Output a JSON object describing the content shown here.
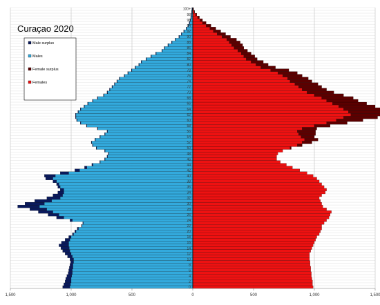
{
  "chart_data": {
    "type": "bar",
    "orientation": "horizontal-pyramid",
    "title": "Curaçao 2020",
    "x_ticks": [
      "1,500",
      "1,000",
      "500",
      "0",
      "500",
      "1,000",
      "1,500"
    ],
    "x_tick_values": [
      -1500,
      -1000,
      -500,
      0,
      500,
      1000,
      1500
    ],
    "xlim": [
      -1500,
      1500
    ],
    "y_ages": [
      0,
      100
    ],
    "age_tick_labels": [
      "0",
      "2",
      "4",
      "6",
      "8",
      "10",
      "12",
      "14",
      "16",
      "18",
      "20",
      "22",
      "24",
      "26",
      "28",
      "30",
      "32",
      "34",
      "36",
      "38",
      "40",
      "42",
      "44",
      "46",
      "48",
      "50",
      "52",
      "54",
      "56",
      "58",
      "60",
      "62",
      "64",
      "66",
      "68",
      "70",
      "72",
      "74",
      "76",
      "78",
      "80",
      "82",
      "84",
      "86",
      "88",
      "90",
      "92",
      "94",
      "96",
      "98",
      "100+"
    ],
    "legend": {
      "placement": "top-left",
      "entries": [
        {
          "label": "Male surplus",
          "color": "#0a1a5c"
        },
        {
          "label": "Males",
          "color": "#33aadd"
        },
        {
          "label": "Female surplus",
          "color": "#5c0000"
        },
        {
          "label": "Females",
          "color": "#ee1111"
        }
      ]
    },
    "grid": true,
    "series": [
      {
        "name": "Males",
        "values": [
          1010,
          1005,
          1000,
          1000,
          995,
          990,
          990,
          985,
          985,
          980,
          980,
          990,
          1000,
          1010,
          1015,
          1020,
          1020,
          1010,
          1000,
          980,
          960,
          940,
          910,
          900,
          990,
          1060,
          1100,
          1150,
          1200,
          1260,
          1220,
          1160,
          1090,
          1070,
          1060,
          1060,
          1090,
          1100,
          1120,
          1150,
          1130,
          1020,
          930,
          870,
          820,
          760,
          720,
          700,
          690,
          720,
          790,
          820,
          830,
          800,
          760,
          720,
          700,
          780,
          870,
          920,
          950,
          960,
          960,
          940,
          920,
          890,
          860,
          820,
          780,
          730,
          700,
          680,
          660,
          640,
          620,
          600,
          560,
          530,
          500,
          470,
          440,
          420,
          380,
          340,
          300,
          250,
          230,
          200,
          170,
          140,
          110,
          90,
          70,
          50,
          35,
          25,
          18,
          12,
          8,
          5,
          3
        ]
      },
      {
        "name": "Females",
        "values": [
          990,
          985,
          985,
          980,
          975,
          975,
          970,
          970,
          965,
          965,
          960,
          960,
          960,
          970,
          980,
          990,
          1000,
          1010,
          1020,
          1040,
          1050,
          1060,
          1060,
          1080,
          1100,
          1120,
          1130,
          1140,
          1100,
          1070,
          1060,
          1050,
          1040,
          1060,
          1090,
          1100,
          1080,
          1060,
          1040,
          1020,
          990,
          940,
          880,
          820,
          770,
          720,
          690,
          690,
          700,
          740,
          800,
          860,
          900,
          920,
          890,
          870,
          860,
          900,
          1000,
          1100,
          1180,
          1240,
          1300,
          1280,
          1240,
          1200,
          1150,
          1100,
          1060,
          1000,
          940,
          900,
          870,
          840,
          800,
          780,
          740,
          700,
          640,
          560,
          520,
          480,
          440,
          420,
          400,
          370,
          340,
          320,
          300,
          280,
          240,
          200,
          170,
          140,
          110,
          80,
          60,
          40,
          25,
          12,
          5
        ]
      },
      {
        "name": "Male surplus",
        "values": [
          60,
          55,
          50,
          45,
          40,
          35,
          30,
          30,
          25,
          25,
          30,
          40,
          50,
          60,
          70,
          80,
          60,
          40,
          20,
          10,
          10,
          10,
          5,
          5,
          20,
          60,
          90,
          120,
          140,
          180,
          160,
          140,
          110,
          80,
          50,
          30,
          20,
          20,
          30,
          60,
          90,
          70,
          40,
          20,
          10,
          5,
          5,
          5,
          5,
          5,
          5,
          5,
          5,
          5,
          5,
          5,
          5,
          5,
          5,
          5,
          5,
          5,
          5,
          5,
          5,
          5,
          5,
          5,
          5,
          5,
          5,
          5,
          5,
          5,
          5,
          5,
          5,
          5,
          5,
          5,
          5,
          5,
          5,
          5,
          5,
          5,
          5,
          5,
          5,
          5,
          5,
          5,
          5,
          5,
          5,
          5,
          5,
          5,
          5,
          5,
          5
        ]
      },
      {
        "name": "Female surplus",
        "values": [
          0,
          0,
          0,
          0,
          0,
          0,
          0,
          0,
          0,
          0,
          0,
          0,
          0,
          0,
          0,
          0,
          0,
          0,
          0,
          0,
          0,
          0,
          0,
          0,
          0,
          0,
          0,
          0,
          0,
          0,
          0,
          0,
          0,
          0,
          0,
          0,
          0,
          0,
          0,
          0,
          0,
          0,
          0,
          0,
          0,
          0,
          0,
          0,
          0,
          0,
          10,
          40,
          80,
          110,
          110,
          140,
          150,
          120,
          130,
          170,
          220,
          280,
          330,
          320,
          310,
          300,
          280,
          260,
          260,
          240,
          220,
          200,
          190,
          190,
          180,
          170,
          160,
          160,
          150,
          120,
          100,
          100,
          90,
          90,
          80,
          80,
          80,
          90,
          90,
          80,
          70,
          70,
          60,
          50,
          40,
          30,
          20,
          15,
          8,
          4,
          2
        ]
      }
    ]
  }
}
